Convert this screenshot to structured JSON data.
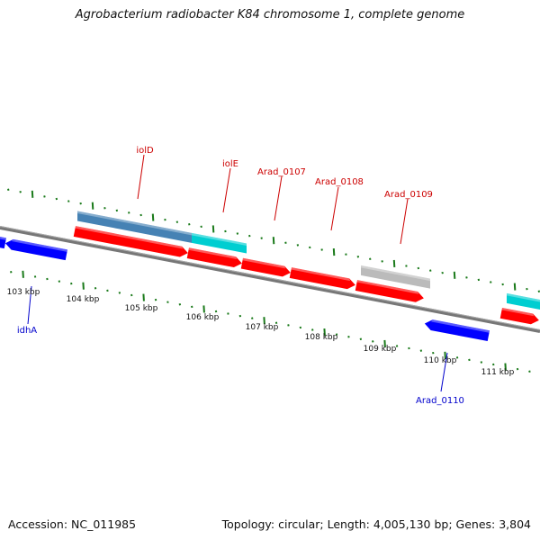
{
  "title": "Agrobacterium radiobacter K84 chromosome 1, complete genome",
  "footer": {
    "accession": "Accession: NC_011985",
    "topology": "Topology: circular; Length: 4,005,130 bp; Genes: 3,804"
  },
  "colors": {
    "forward_gene": "#ff0000",
    "reverse_gene": "#0000ff",
    "feature_steelblue": "#4682b4",
    "feature_cyan": "#00ced1",
    "feature_gray": "#bbbbbb",
    "ticks": "#1a7a1a",
    "backbone": "#777777",
    "label_forward": "#cc0000",
    "label_reverse": "#0000cc"
  },
  "kbp_labels": [
    "103 kbp",
    "104 kbp",
    "105 kbp",
    "106 kbp",
    "107 kbp",
    "108 kbp",
    "109 kbp",
    "110 kbp",
    "111 kbp"
  ],
  "gene_labels": [
    {
      "text": "iolD",
      "strand": "forward"
    },
    {
      "text": "iolE",
      "strand": "forward"
    },
    {
      "text": "Arad_0107",
      "strand": "forward"
    },
    {
      "text": "Arad_0108",
      "strand": "forward"
    },
    {
      "text": "Arad_0109",
      "strand": "forward"
    },
    {
      "text": "idhA",
      "strand": "reverse"
    },
    {
      "text": "Arad_0110",
      "strand": "reverse"
    }
  ]
}
